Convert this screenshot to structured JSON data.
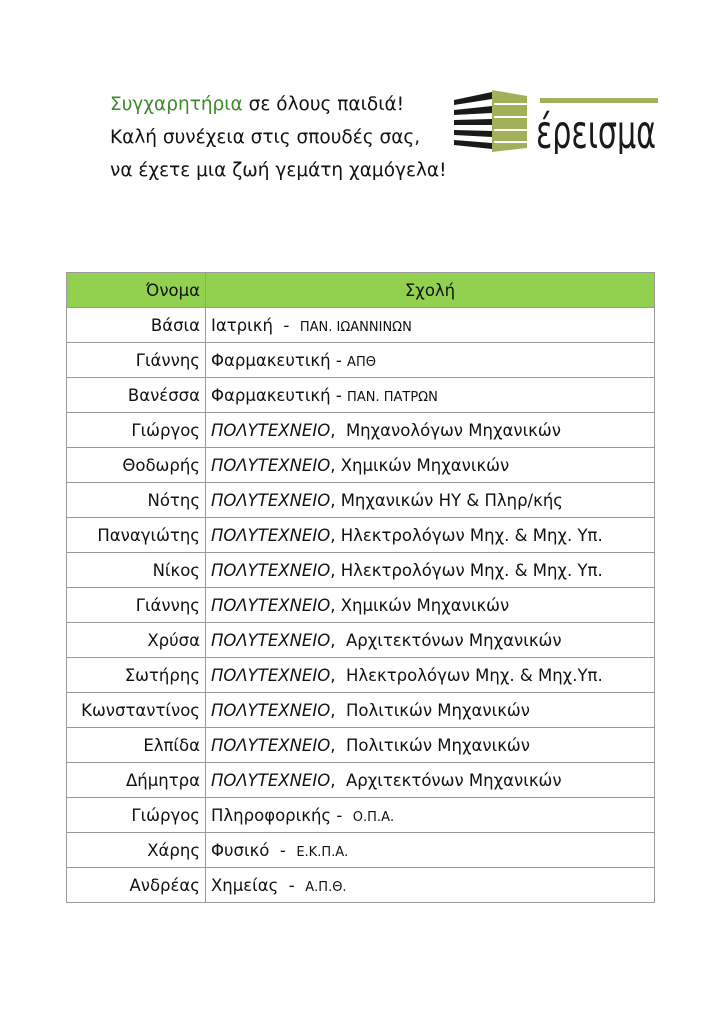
{
  "greeting": {
    "highlight": "Συγχαρητήρια",
    "line1_rest": " σε όλους παιδιά!",
    "line2": "Καλή συνέχεια στις σπουδές σας,",
    "line3": "να έχετε μια ζωή γεμάτη χαμόγελα!"
  },
  "logo": {
    "text": "έρεισμα",
    "colors": {
      "dark": "#1a1a1a",
      "olive": "#a3b05a"
    }
  },
  "table": {
    "headers": [
      "Όνομα",
      "Σχολή"
    ],
    "header_color": "#92d050",
    "rows": [
      {
        "name": "Βάσια",
        "school": "Ιατρική  -  ",
        "italic": "",
        "suffix": "ΠΑΝ. ΙΩΑΝΝΙΝΩΝ"
      },
      {
        "name": "Γιάννης",
        "school": "Φαρμακευτική - ",
        "italic": "",
        "suffix": "ΑΠΘ"
      },
      {
        "name": "Βανέσσα",
        "school": "Φαρμακευτική - ",
        "italic": "",
        "suffix": "ΠΑΝ. ΠΑΤΡΩΝ"
      },
      {
        "name": "Γιώργος",
        "italic": "ΠΟΛΥΤΕΧΝΕΙΟ",
        "school": ",  Μηχανολόγων Μηχανικών",
        "suffix": ""
      },
      {
        "name": "Θοδωρής",
        "italic": "ΠΟΛΥΤΕΧΝΕΙΟ",
        "school": ", Χημικών Μηχανικών",
        "suffix": ""
      },
      {
        "name": "Νότης",
        "italic": "ΠΟΛΥΤΕΧΝΕΙΟ",
        "school": ", Μηχανικών ΗΥ & Πληρ/κής",
        "suffix": ""
      },
      {
        "name": "Παναγιώτης",
        "italic": "ΠΟΛΥΤΕΧΝΕΙΟ",
        "school": ", Ηλεκτρολόγων Μηχ. & Μηχ. Υπ.",
        "suffix": ""
      },
      {
        "name": "Νίκος",
        "italic": "ΠΟΛΥΤΕΧΝΕΙΟ",
        "school": ", Ηλεκτρολόγων Μηχ. & Μηχ. Υπ.",
        "suffix": ""
      },
      {
        "name": "Γιάννης",
        "italic": "ΠΟΛΥΤΕΧΝΕΙΟ",
        "school": ", Χημικών Μηχανικών",
        "suffix": ""
      },
      {
        "name": "Χρύσα",
        "italic": "ΠΟΛΥΤΕΧΝΕΙΟ",
        "school": ",  Αρχιτεκτόνων Μηχανικών",
        "suffix": ""
      },
      {
        "name": "Σωτήρης",
        "italic": "ΠΟΛΥΤΕΧΝΕΙΟ",
        "school": ",  Ηλεκτρολόγων Μηχ. & Μηχ.Υπ.",
        "suffix": ""
      },
      {
        "name": "Κωνσταντίνος",
        "italic": "ΠΟΛΥΤΕΧΝΕΙΟ",
        "school": ",  Πολιτικών Μηχανικών",
        "suffix": ""
      },
      {
        "name": "Ελπίδα",
        "italic": "ΠΟΛΥΤΕΧΝΕΙΟ",
        "school": ",  Πολιτικών Μηχανικών",
        "suffix": ""
      },
      {
        "name": "Δήμητρα",
        "italic": "ΠΟΛΥΤΕΧΝΕΙΟ",
        "school": ",  Αρχιτεκτόνων Μηχανικών",
        "suffix": ""
      },
      {
        "name": "Γιώργος",
        "italic": "",
        "school": "Πληροφορικής -  ",
        "suffix": "Ο.Π.Α."
      },
      {
        "name": "Χάρης",
        "italic": "",
        "school": "Φυσικό  -  ",
        "suffix": "Ε.Κ.Π.Α."
      },
      {
        "name": "Ανδρέας",
        "italic": "",
        "school": "Χημείας  -  ",
        "suffix": "Α.Π.Θ."
      }
    ]
  }
}
